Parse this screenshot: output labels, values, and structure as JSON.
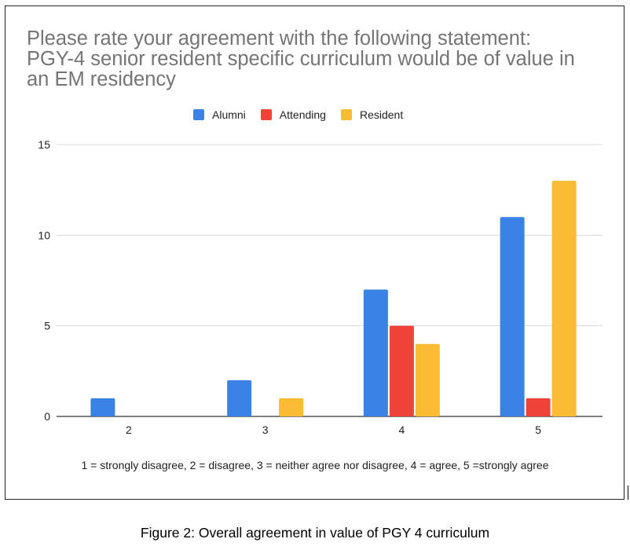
{
  "chart_data": {
    "type": "bar",
    "title_lines": [
      "Please rate your agreement with the following statement:",
      "PGY-4 senior resident specific curriculum would be of value in",
      "an EM residency"
    ],
    "categories": [
      "2",
      "3",
      "4",
      "5"
    ],
    "series": [
      {
        "name": "Alumni",
        "color": "#3b82e6",
        "values": [
          1,
          2,
          7,
          11
        ]
      },
      {
        "name": "Attending",
        "color": "#ee4336",
        "values": [
          0,
          0,
          5,
          1
        ]
      },
      {
        "name": "Resident",
        "color": "#fbbb33",
        "values": [
          0,
          1,
          4,
          13
        ]
      }
    ],
    "ylim": [
      0,
      15
    ],
    "yticks": [
      "0",
      "5",
      "10",
      "15"
    ],
    "xlabel": "",
    "ylabel": "",
    "grid": true,
    "legend_position": "top-center",
    "note": "1 = strongly disagree, 2 = disagree, 3 = neither agree nor disagree, 4 = agree, 5 =strongly agree"
  },
  "caption": "Figure 2: Overall agreement in value of PGY 4 curriculum"
}
